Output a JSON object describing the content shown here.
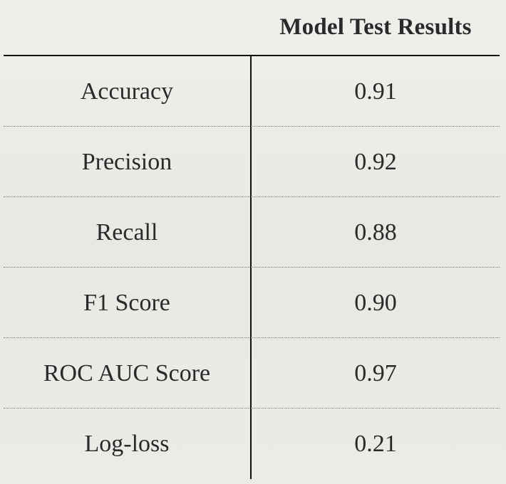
{
  "table": {
    "column_header": "Model Test Results",
    "rows": [
      {
        "metric": "Accuracy",
        "value": "0.91"
      },
      {
        "metric": "Precision",
        "value": "0.92"
      },
      {
        "metric": "Recall",
        "value": "0.88"
      },
      {
        "metric": "F1 Score",
        "value": "0.90"
      },
      {
        "metric": "ROC AUC Score",
        "value": "0.97"
      },
      {
        "metric": "Log-loss",
        "value": "0.21"
      }
    ]
  },
  "chart_data": {
    "type": "table",
    "columns": [
      "",
      "Model Test Results"
    ],
    "categories": [
      "Accuracy",
      "Precision",
      "Recall",
      "F1 Score",
      "ROC AUC Score",
      "Log-loss"
    ],
    "values": [
      0.91,
      0.92,
      0.88,
      0.9,
      0.97,
      0.21
    ]
  }
}
